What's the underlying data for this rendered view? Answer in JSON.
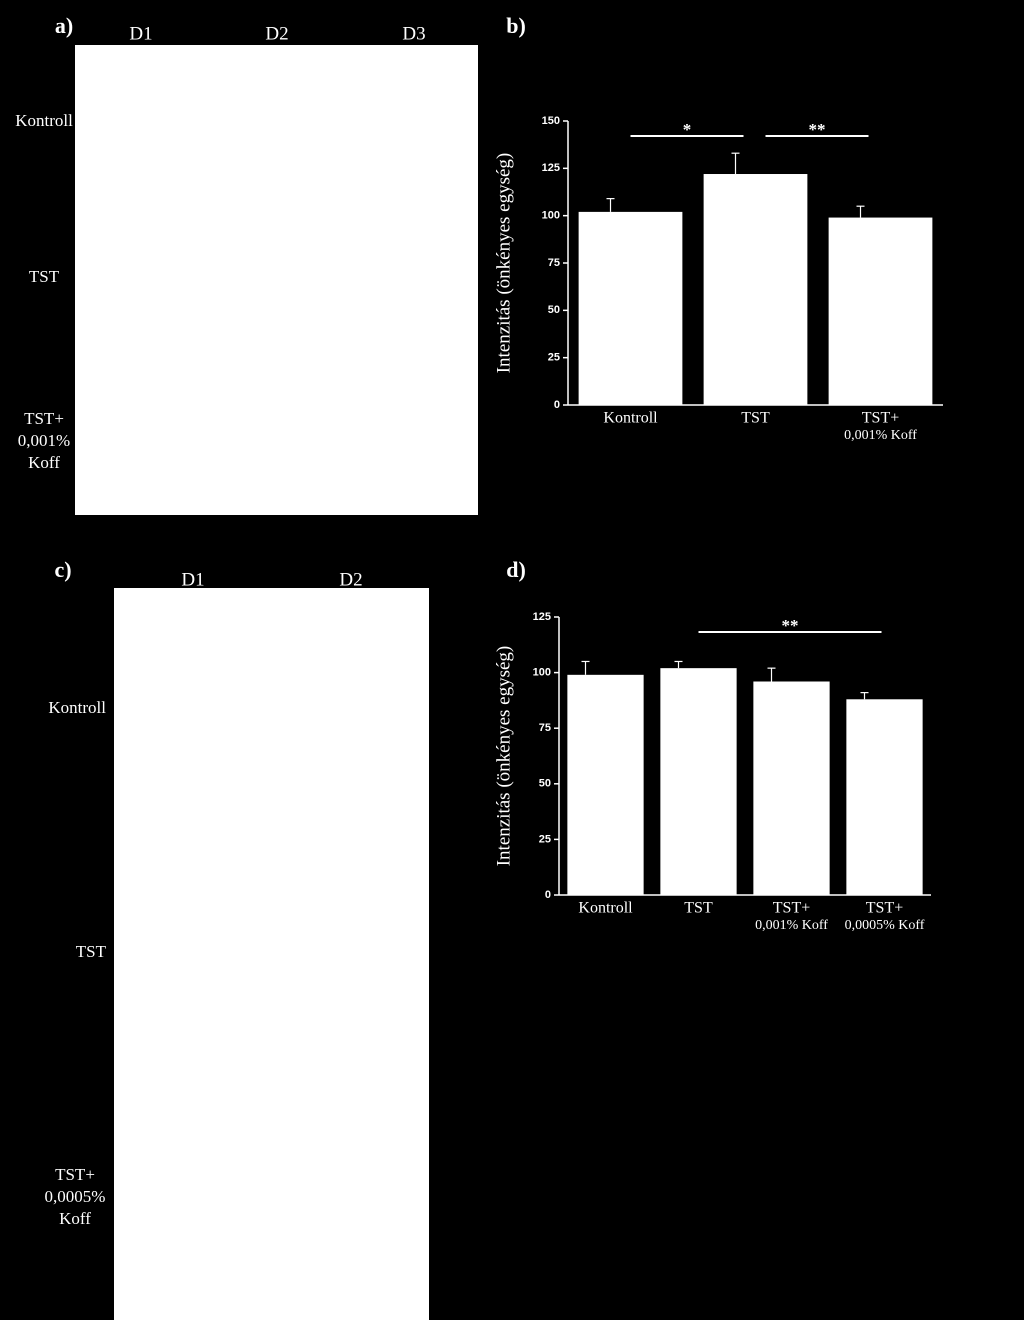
{
  "panels": [
    {
      "label": "a)",
      "columns": [
        "D1",
        "D2",
        "D3"
      ],
      "rows": [
        [
          "Kontroll"
        ],
        [
          "TST"
        ],
        [
          "TST+",
          "0,001%",
          "Koff"
        ]
      ]
    },
    {
      "label": "c)",
      "columns": [
        "D1",
        "D2"
      ],
      "rows": [
        [
          "Kontroll"
        ],
        [
          "TST"
        ],
        [
          "TST+",
          "0,0005%",
          "Koff"
        ]
      ]
    }
  ],
  "chart_data": [
    {
      "type": "bar",
      "panel_label": "b)",
      "ylabel": "Intenzitás (önkényes egység)",
      "categories": [
        [
          "Kontroll"
        ],
        [
          "TST"
        ],
        [
          "TST+",
          "0,001% Koff"
        ]
      ],
      "values": [
        102,
        122,
        99
      ],
      "error": [
        7,
        11,
        6
      ],
      "color": "#ffffff",
      "ylim": [
        0,
        150
      ],
      "yticks": [
        0,
        25,
        50,
        75,
        100,
        125,
        150
      ],
      "brackets": [
        {
          "label": "*",
          "between": [
            0,
            1
          ]
        },
        {
          "label": "**",
          "between": [
            1,
            2
          ]
        }
      ]
    },
    {
      "type": "bar",
      "panel_label": "d)",
      "ylabel": "Intenzitás (önkényes egység)",
      "categories": [
        [
          "Kontroll"
        ],
        [
          "TST"
        ],
        [
          "TST+",
          "0,001% Koff"
        ],
        [
          "TST+",
          "0,0005% Koff"
        ]
      ],
      "values": [
        99,
        102,
        96,
        88
      ],
      "error": [
        6,
        3,
        6,
        3
      ],
      "color": "#ffffff",
      "ylim": [
        0,
        125
      ],
      "yticks": [
        0,
        25,
        50,
        75,
        100,
        125
      ],
      "brackets": [
        {
          "label": "**",
          "between": [
            1,
            3
          ]
        }
      ]
    }
  ]
}
